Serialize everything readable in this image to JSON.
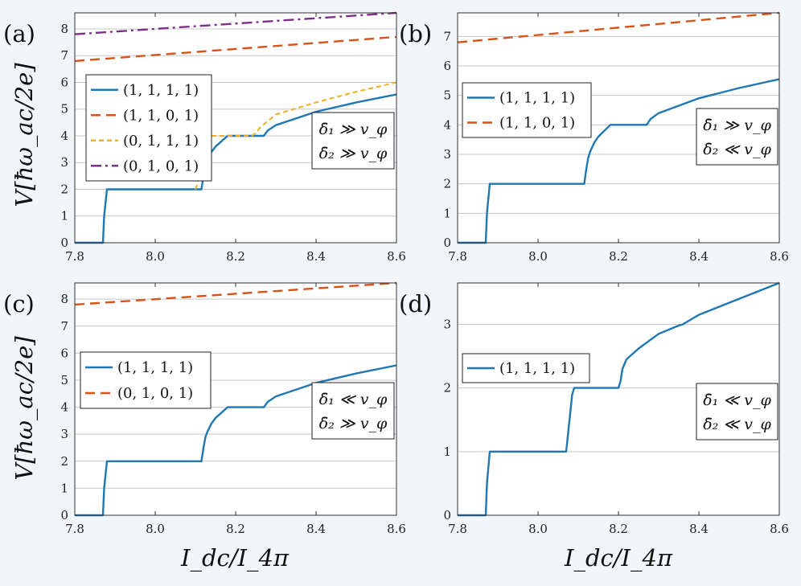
{
  "colors": {
    "background": "#f2f5f9",
    "s1111": "#1f77b4",
    "s1101": "#d95319",
    "s0111": "#edb120",
    "s0101": "#7e2f8e"
  },
  "axis_labels": {
    "xlabel": "I_dc/I_4π",
    "ylabel": "V[ħω_ac/2e]"
  },
  "chart_data": [
    {
      "id": "a",
      "panel_label": "(a)",
      "type": "line",
      "xlim": [
        7.8,
        8.6
      ],
      "ylim": [
        0,
        8.6
      ],
      "xticks": [
        "7.8",
        "8.0",
        "8.2",
        "8.4",
        "8.6"
      ],
      "yticks": [
        "0",
        "1",
        "2",
        "3",
        "4",
        "5",
        "6",
        "7",
        "8"
      ],
      "annotation": [
        "δ̄₁ ≫ v_φ",
        "δ̄₂ ≫ v_φ"
      ],
      "series": [
        {
          "name": "(1, 1, 1, 1)",
          "style": "solid",
          "color_key": "s1111",
          "x": [
            7.8,
            7.87,
            7.873,
            7.88,
            8.11,
            8.115,
            8.12,
            8.125,
            8.13,
            8.14,
            8.15,
            8.18,
            8.27,
            8.28,
            8.3,
            8.35,
            8.4,
            8.5,
            8.6
          ],
          "y": [
            0,
            0,
            1,
            2,
            2,
            2,
            2.5,
            2.9,
            3.1,
            3.4,
            3.6,
            4,
            4,
            4.2,
            4.4,
            4.65,
            4.9,
            5.25,
            5.55
          ]
        },
        {
          "name": "(1, 1, 0, 1)",
          "style": "dashed",
          "color_key": "s1101",
          "x": [
            7.8,
            8.6
          ],
          "y": [
            6.8,
            7.7
          ]
        },
        {
          "name": "(0, 1, 1, 1)",
          "style": "dotted",
          "color_key": "s0111",
          "x": [
            8.1,
            8.105,
            8.11,
            8.115,
            8.12,
            8.125,
            8.13,
            8.14,
            8.16,
            8.24,
            8.25,
            8.26,
            8.3,
            8.4,
            8.5,
            8.6
          ],
          "y": [
            2,
            2.2,
            2.6,
            3,
            3.3,
            3.6,
            3.8,
            4,
            4,
            4,
            4.1,
            4.3,
            4.8,
            5.25,
            5.65,
            6
          ]
        },
        {
          "name": "(0, 1, 0, 1)",
          "style": "dashdot",
          "color_key": "s0101",
          "x": [
            7.8,
            8.6
          ],
          "y": [
            7.8,
            8.6
          ]
        }
      ]
    },
    {
      "id": "b",
      "panel_label": "(b)",
      "type": "line",
      "xlim": [
        7.8,
        8.6
      ],
      "ylim": [
        0,
        7.8
      ],
      "xticks": [
        "7.8",
        "8.0",
        "8.2",
        "8.4",
        "8.6"
      ],
      "yticks": [
        "0",
        "1",
        "2",
        "3",
        "4",
        "5",
        "6",
        "7"
      ],
      "annotation": [
        "δ̄₁ ≫ v_φ",
        "δ̄₂ ≪ v_φ"
      ],
      "series": [
        {
          "name": "(1, 1, 1, 1)",
          "style": "solid",
          "color_key": "s1111",
          "x": [
            7.8,
            7.87,
            7.873,
            7.88,
            8.11,
            8.115,
            8.12,
            8.125,
            8.13,
            8.14,
            8.15,
            8.18,
            8.27,
            8.28,
            8.3,
            8.35,
            8.4,
            8.5,
            8.6
          ],
          "y": [
            0,
            0,
            1,
            2,
            2,
            2,
            2.5,
            2.9,
            3.1,
            3.4,
            3.6,
            4,
            4,
            4.2,
            4.4,
            4.65,
            4.9,
            5.25,
            5.55
          ]
        },
        {
          "name": "(1, 1, 0, 1)",
          "style": "dashed",
          "color_key": "s1101",
          "x": [
            7.8,
            8.6
          ],
          "y": [
            6.8,
            7.8
          ]
        }
      ]
    },
    {
      "id": "c",
      "panel_label": "(c)",
      "type": "line",
      "xlim": [
        7.8,
        8.6
      ],
      "ylim": [
        0,
        8.6
      ],
      "xticks": [
        "7.8",
        "8.0",
        "8.2",
        "8.4",
        "8.6"
      ],
      "yticks": [
        "0",
        "1",
        "2",
        "3",
        "4",
        "5",
        "6",
        "7",
        "8"
      ],
      "annotation": [
        "δ̄₁ ≪ v_φ",
        "δ̄₂ ≫ v_φ"
      ],
      "series": [
        {
          "name": "(1, 1, 1, 1)",
          "style": "solid",
          "color_key": "s1111",
          "x": [
            7.8,
            7.87,
            7.873,
            7.88,
            8.11,
            8.115,
            8.12,
            8.125,
            8.13,
            8.14,
            8.15,
            8.18,
            8.27,
            8.28,
            8.3,
            8.35,
            8.4,
            8.5,
            8.6
          ],
          "y": [
            0,
            0,
            1,
            2,
            2,
            2,
            2.5,
            2.9,
            3.1,
            3.4,
            3.6,
            4,
            4,
            4.2,
            4.4,
            4.65,
            4.9,
            5.25,
            5.55
          ]
        },
        {
          "name": "(0, 1, 0, 1)",
          "style": "dashed",
          "color_key": "s1101",
          "x": [
            7.8,
            8.6
          ],
          "y": [
            7.8,
            8.6
          ]
        }
      ]
    },
    {
      "id": "d",
      "panel_label": "(d)",
      "type": "line",
      "xlim": [
        7.8,
        8.6
      ],
      "ylim": [
        0,
        3.65
      ],
      "xticks": [
        "7.8",
        "8.0",
        "8.2",
        "8.4",
        "8.6"
      ],
      "yticks": [
        "0",
        "1",
        "2",
        "3"
      ],
      "annotation": [
        "δ̄₁ ≪ v_φ",
        "δ̄₂ ≪ v_φ"
      ],
      "series": [
        {
          "name": "(1, 1, 1, 1)",
          "style": "solid",
          "color_key": "s1111",
          "x": [
            7.8,
            7.87,
            7.873,
            7.88,
            8.07,
            8.075,
            8.08,
            8.085,
            8.09,
            8.2,
            8.205,
            8.21,
            8.22,
            8.25,
            8.3,
            8.35,
            8.36,
            8.4,
            8.5,
            8.6
          ],
          "y": [
            0,
            0,
            0.5,
            1,
            1,
            1.3,
            1.6,
            1.9,
            2,
            2,
            2.1,
            2.3,
            2.45,
            2.62,
            2.85,
            2.98,
            3,
            3.15,
            3.4,
            3.65
          ]
        }
      ]
    }
  ]
}
